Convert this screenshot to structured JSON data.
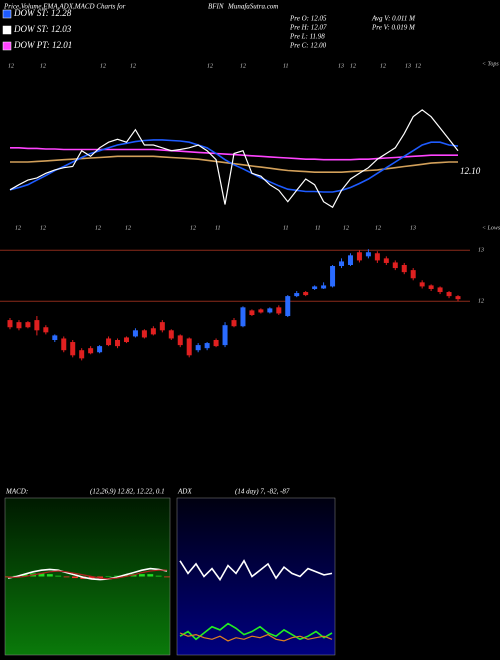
{
  "header": {
    "title": "Price,Volume,EMA,ADX,MACD Charts for",
    "symbol": "BFIN",
    "site": "MunafaSutra.com"
  },
  "legend": [
    {
      "text": "DOW ST: 12.28",
      "color": "#1e5bff"
    },
    {
      "text": "DOW ST: 12.03",
      "color": "#ffffff"
    },
    {
      "text": "DOW PT: 12.01",
      "color": "#ff44ff"
    }
  ],
  "info": {
    "left": [
      "Pre  O: 12.05",
      "Pre  H: 12.07",
      "Pre  L: 11.98",
      "Pre  C: 12.00"
    ],
    "right": [
      "Avg V: 0.011 M",
      "Pre  V: 0.019 M"
    ]
  },
  "chart_data": [
    {
      "type": "line",
      "ylim": [
        10.5,
        13.5
      ],
      "last_label": "12.10",
      "tops_label": "< Tops",
      "lows_label": "< Lows",
      "top_labels": [
        "12",
        "12",
        "12",
        "12",
        "12",
        "12",
        "11",
        "13",
        "12",
        "12",
        "13",
        "12"
      ],
      "bottom_labels": [
        "12",
        "12",
        "12",
        "12",
        "12",
        "11",
        "11",
        "11",
        "12",
        "12",
        "13"
      ],
      "series": [
        {
          "color": "#d2a05a",
          "values": [
            11.7,
            11.7,
            11.7,
            11.71,
            11.72,
            11.73,
            11.74,
            11.75,
            11.76,
            11.77,
            11.78,
            11.79,
            11.8,
            11.8,
            11.8,
            11.8,
            11.8,
            11.79,
            11.78,
            11.77,
            11.76,
            11.75,
            11.73,
            11.71,
            11.69,
            11.67,
            11.65,
            11.63,
            11.61,
            11.59,
            11.57,
            11.55,
            11.54,
            11.53,
            11.52,
            11.52,
            11.52,
            11.52,
            11.53,
            11.54,
            11.55,
            11.56,
            11.58,
            11.6,
            11.62,
            11.64,
            11.66,
            11.68,
            11.69,
            11.7,
            11.7
          ]
        },
        {
          "color": "#ff44ff",
          "values": [
            11.95,
            11.95,
            11.94,
            11.94,
            11.93,
            11.93,
            11.92,
            11.92,
            11.92,
            11.92,
            11.92,
            11.92,
            11.92,
            11.92,
            11.92,
            11.92,
            11.92,
            11.91,
            11.9,
            11.89,
            11.88,
            11.87,
            11.86,
            11.85,
            11.84,
            11.83,
            11.82,
            11.81,
            11.8,
            11.79,
            11.78,
            11.77,
            11.76,
            11.75,
            11.75,
            11.74,
            11.74,
            11.74,
            11.74,
            11.75,
            11.75,
            11.76,
            11.77,
            11.78,
            11.79,
            11.8,
            11.81,
            11.82,
            11.82,
            11.82,
            11.82
          ]
        },
        {
          "color": "#1e5bff",
          "values": [
            11.21,
            11.25,
            11.3,
            11.38,
            11.46,
            11.55,
            11.62,
            11.7,
            11.78,
            11.85,
            11.9,
            11.95,
            12.0,
            12.03,
            12.06,
            12.08,
            12.09,
            12.09,
            12.08,
            12.07,
            12.05,
            12.0,
            11.95,
            11.85,
            11.74,
            11.65,
            11.58,
            11.5,
            11.42,
            11.35,
            11.28,
            11.22,
            11.2,
            11.18,
            11.18,
            11.17,
            11.17,
            11.2,
            11.25,
            11.32,
            11.4,
            11.5,
            11.6,
            11.7,
            11.8,
            11.9,
            12.0,
            12.05,
            12.05,
            12.0,
            11.98
          ]
        },
        {
          "color": "#ffffff",
          "values": [
            11.21,
            11.3,
            11.38,
            11.42,
            11.5,
            11.56,
            11.6,
            11.62,
            11.9,
            11.8,
            11.95,
            12.05,
            12.1,
            12.05,
            12.27,
            12.0,
            12.0,
            11.95,
            11.9,
            11.92,
            11.95,
            12.0,
            11.9,
            11.74,
            10.95,
            11.85,
            11.9,
            11.5,
            11.45,
            11.3,
            11.2,
            11.0,
            11.2,
            11.4,
            11.3,
            11.0,
            10.9,
            11.2,
            11.4,
            11.5,
            11.6,
            11.75,
            11.85,
            11.95,
            12.2,
            12.5,
            12.62,
            12.5,
            12.3,
            12.1,
            11.9
          ]
        }
      ]
    },
    {
      "type": "candlestick",
      "ylim": [
        8.3,
        13.2
      ],
      "yticks": [
        12,
        13
      ],
      "up_color": "#2a6bff",
      "down_color": "#e02020",
      "open": [
        11.63,
        11.59,
        11.59,
        11.63,
        11.49,
        11.24,
        11.27,
        11.2,
        11.04,
        11.08,
        11.0,
        11.27,
        11.24,
        11.29,
        11.31,
        11.43,
        11.47,
        11.59,
        11.43,
        11.33,
        11.27,
        11.04,
        11.08,
        11.24,
        11.14,
        11.63,
        11.51,
        11.82,
        11.84,
        11.78,
        11.88,
        11.71,
        12.1,
        12.18,
        12.24,
        12.25,
        12.29,
        12.69,
        12.71,
        12.96,
        12.88,
        12.94,
        12.84,
        12.76,
        12.71,
        12.61,
        12.37,
        12.31,
        12.27,
        12.18,
        12.1
      ],
      "high": [
        11.67,
        11.63,
        11.61,
        11.71,
        11.53,
        11.35,
        11.31,
        11.24,
        11.08,
        11.12,
        11.14,
        11.31,
        11.27,
        11.31,
        11.47,
        11.45,
        11.51,
        11.63,
        11.45,
        11.35,
        11.29,
        11.18,
        11.2,
        11.27,
        11.59,
        11.67,
        11.9,
        11.84,
        11.86,
        11.88,
        11.92,
        12.12,
        12.2,
        12.2,
        12.31,
        12.37,
        12.71,
        12.84,
        12.94,
        13.0,
        13.02,
        12.98,
        12.88,
        12.8,
        12.75,
        12.65,
        12.41,
        12.33,
        12.29,
        12.2,
        12.12
      ],
      "low": [
        11.45,
        11.43,
        11.47,
        11.33,
        11.35,
        11.2,
        11.0,
        10.9,
        10.84,
        10.96,
        10.98,
        11.12,
        11.08,
        11.18,
        11.29,
        11.27,
        11.33,
        11.39,
        11.24,
        11.1,
        10.9,
        11.0,
        11.04,
        11.1,
        11.1,
        11.49,
        11.49,
        11.71,
        11.76,
        11.76,
        11.73,
        11.69,
        12.08,
        12.1,
        12.22,
        12.24,
        12.27,
        12.65,
        12.69,
        12.76,
        12.84,
        12.75,
        12.71,
        12.61,
        12.53,
        12.41,
        12.25,
        12.2,
        12.14,
        12.06,
        12.0
      ],
      "close": [
        11.49,
        11.47,
        11.49,
        11.43,
        11.39,
        11.33,
        11.04,
        10.94,
        10.88,
        10.98,
        11.12,
        11.14,
        11.12,
        11.2,
        11.43,
        11.29,
        11.35,
        11.43,
        11.27,
        11.14,
        10.94,
        11.14,
        11.18,
        11.12,
        11.53,
        11.51,
        11.88,
        11.73,
        11.78,
        11.86,
        11.76,
        12.1,
        12.16,
        12.12,
        12.29,
        12.31,
        12.69,
        12.78,
        12.9,
        12.8,
        12.96,
        12.8,
        12.75,
        12.65,
        12.57,
        12.45,
        12.29,
        12.24,
        12.18,
        12.1,
        12.04
      ]
    },
    {
      "type": "line",
      "title": "MACD:",
      "subtitle": "(12,26,9) 12.82, 12.22, 0.1",
      "ylim": [
        -1,
        1
      ],
      "bars": {
        "up_color": "#22dd22",
        "down_color": "#ff3030",
        "values": [
          -0.01,
          0.01,
          0.03,
          0.04,
          0.04,
          0.03,
          0.01,
          -0.01,
          -0.02,
          -0.03,
          -0.03,
          -0.02,
          0.0,
          0.01,
          0.02,
          0.03,
          0.03,
          0.03,
          0.01,
          -0.01
        ]
      },
      "series": [
        {
          "color": "#ffffff",
          "values": [
            -0.02,
            0.0,
            0.03,
            0.06,
            0.08,
            0.09,
            0.08,
            0.05,
            0.02,
            -0.01,
            -0.03,
            -0.04,
            -0.03,
            -0.01,
            0.02,
            0.05,
            0.08,
            0.1,
            0.09,
            0.07
          ]
        },
        {
          "color": "#b02020",
          "values": [
            -0.01,
            -0.01,
            0.0,
            0.02,
            0.04,
            0.06,
            0.07,
            0.06,
            0.04,
            0.02,
            0.0,
            -0.02,
            -0.03,
            -0.02,
            0.0,
            0.02,
            0.05,
            0.07,
            0.08,
            0.08
          ]
        }
      ]
    },
    {
      "type": "line",
      "title": "ADX",
      "subtitle": "(14 day) 7, -82, -87",
      "ylim": [
        0,
        100
      ],
      "series": [
        {
          "color": "#ffffff",
          "values": [
            60,
            52,
            58,
            50,
            55,
            48,
            57,
            52,
            60,
            50,
            54,
            58,
            49,
            56,
            52,
            50,
            55,
            53,
            51,
            52
          ]
        },
        {
          "color": "#22ee22",
          "values": [
            12,
            15,
            10,
            14,
            18,
            16,
            20,
            17,
            13,
            15,
            18,
            14,
            12,
            16,
            13,
            10,
            12,
            15,
            11,
            14
          ]
        },
        {
          "color": "#e08020",
          "values": [
            14,
            12,
            13,
            11,
            10,
            12,
            9,
            11,
            10,
            12,
            11,
            13,
            10,
            9,
            11,
            12,
            10,
            11,
            12,
            10
          ]
        }
      ]
    }
  ]
}
